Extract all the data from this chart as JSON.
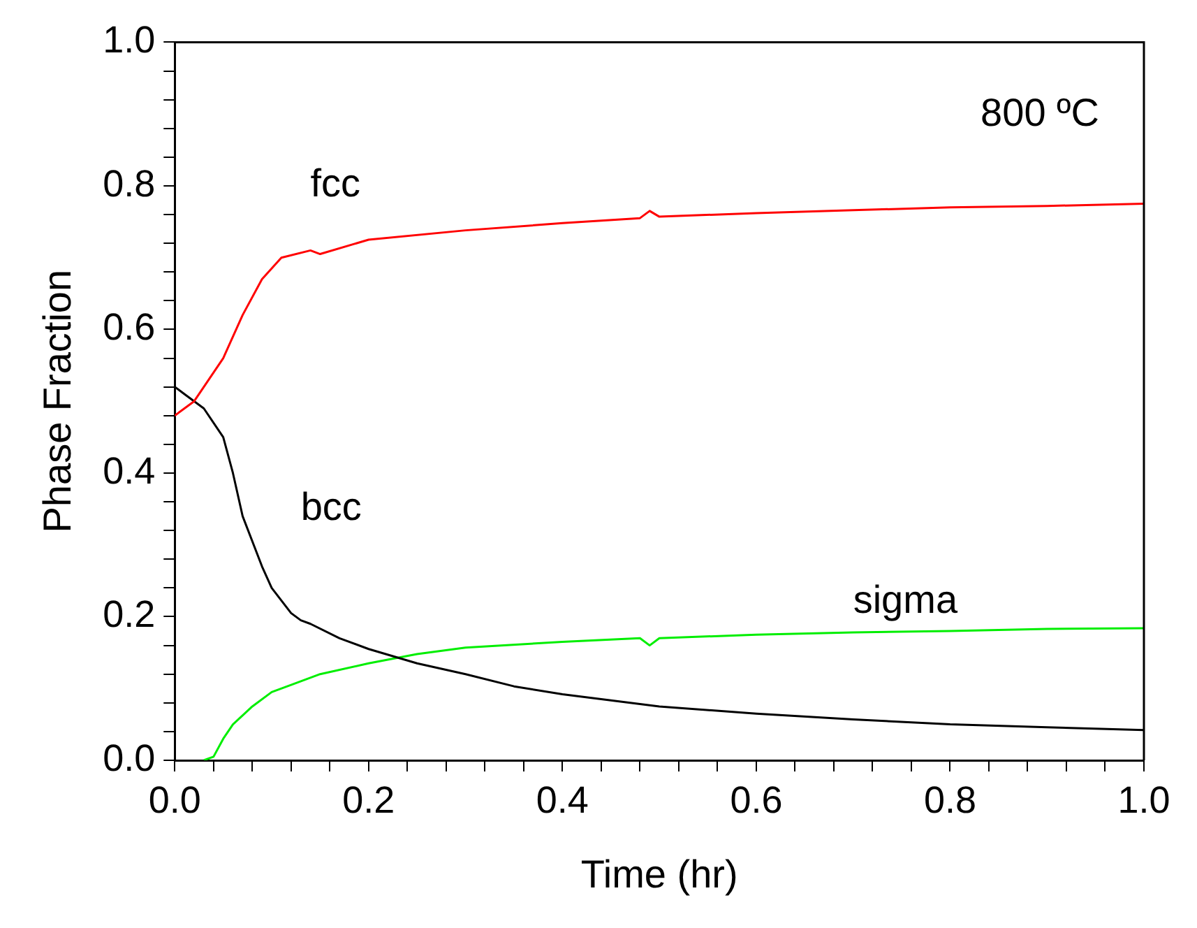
{
  "chart_data": {
    "type": "line",
    "xlabel": "Time (hr)",
    "ylabel": "Phase Fraction",
    "annotations": [
      "800 ºC"
    ],
    "xlim": [
      0,
      1
    ],
    "ylim": [
      0,
      1
    ],
    "xticks": [
      {
        "value": 0,
        "label": "0.0"
      },
      {
        "value": 0.04,
        "label": null
      },
      {
        "value": 0.08,
        "label": null
      },
      {
        "value": 0.12,
        "label": null
      },
      {
        "value": 0.16,
        "label": null
      },
      {
        "value": 0.2,
        "label": "0.2"
      },
      {
        "value": 0.24,
        "label": null
      },
      {
        "value": 0.28,
        "label": null
      },
      {
        "value": 0.32,
        "label": null
      },
      {
        "value": 0.36,
        "label": null
      },
      {
        "value": 0.4,
        "label": "0.4"
      },
      {
        "value": 0.44,
        "label": null
      },
      {
        "value": 0.48,
        "label": null
      },
      {
        "value": 0.52,
        "label": null
      },
      {
        "value": 0.56,
        "label": null
      },
      {
        "value": 0.6,
        "label": "0.6"
      },
      {
        "value": 0.64,
        "label": null
      },
      {
        "value": 0.68,
        "label": null
      },
      {
        "value": 0.72,
        "label": null
      },
      {
        "value": 0.76,
        "label": null
      },
      {
        "value": 0.8,
        "label": "0.8"
      },
      {
        "value": 0.84,
        "label": null
      },
      {
        "value": 0.88,
        "label": null
      },
      {
        "value": 0.92,
        "label": null
      },
      {
        "value": 0.96,
        "label": null
      },
      {
        "value": 1,
        "label": "1.0"
      }
    ],
    "yticks": [
      {
        "value": 0,
        "label": "0.0"
      },
      {
        "value": 0.04,
        "label": null
      },
      {
        "value": 0.08,
        "label": null
      },
      {
        "value": 0.12,
        "label": null
      },
      {
        "value": 0.16,
        "label": null
      },
      {
        "value": 0.2,
        "label": "0.2"
      },
      {
        "value": 0.24,
        "label": null
      },
      {
        "value": 0.28,
        "label": null
      },
      {
        "value": 0.32,
        "label": null
      },
      {
        "value": 0.36,
        "label": null
      },
      {
        "value": 0.4,
        "label": "0.4"
      },
      {
        "value": 0.44,
        "label": null
      },
      {
        "value": 0.48,
        "label": null
      },
      {
        "value": 0.52,
        "label": null
      },
      {
        "value": 0.56,
        "label": null
      },
      {
        "value": 0.6,
        "label": "0.6"
      },
      {
        "value": 0.64,
        "label": null
      },
      {
        "value": 0.68,
        "label": null
      },
      {
        "value": 0.72,
        "label": null
      },
      {
        "value": 0.76,
        "label": null
      },
      {
        "value": 0.8,
        "label": "0.8"
      },
      {
        "value": 0.84,
        "label": null
      },
      {
        "value": 0.88,
        "label": null
      },
      {
        "value": 0.92,
        "label": null
      },
      {
        "value": 0.96,
        "label": null
      },
      {
        "value": 1,
        "label": "1.0"
      }
    ],
    "grid": false,
    "legend": false,
    "marker": "none",
    "line_style": "solid",
    "series": [
      {
        "name": "fcc",
        "color": "#ff0000",
        "x": [
          0,
          0.02,
          0.05,
          0.07,
          0.09,
          0.11,
          0.14,
          0.15,
          0.2,
          0.3,
          0.4,
          0.48,
          0.49,
          0.5,
          0.6,
          0.7,
          0.8,
          0.9,
          1
        ],
        "values": [
          0.48,
          0.5,
          0.56,
          0.62,
          0.67,
          0.7,
          0.71,
          0.705,
          0.725,
          0.738,
          0.748,
          0.755,
          0.765,
          0.757,
          0.762,
          0.766,
          0.77,
          0.772,
          0.775
        ]
      },
      {
        "name": "bcc",
        "color": "#000000",
        "x": [
          0,
          0.01,
          0.02,
          0.03,
          0.05,
          0.06,
          0.07,
          0.09,
          0.1,
          0.12,
          0.13,
          0.14,
          0.17,
          0.2,
          0.25,
          0.3,
          0.35,
          0.4,
          0.5,
          0.6,
          0.7,
          0.8,
          0.9,
          1
        ],
        "values": [
          0.52,
          0.51,
          0.5,
          0.49,
          0.45,
          0.4,
          0.34,
          0.27,
          0.24,
          0.205,
          0.195,
          0.19,
          0.17,
          0.155,
          0.135,
          0.12,
          0.103,
          0.092,
          0.075,
          0.065,
          0.057,
          0.05,
          0.046,
          0.042
        ]
      },
      {
        "name": "sigma",
        "color": "#00ee00",
        "x": [
          0.03,
          0.04,
          0.05,
          0.06,
          0.08,
          0.1,
          0.12,
          0.15,
          0.2,
          0.25,
          0.3,
          0.4,
          0.48,
          0.49,
          0.5,
          0.6,
          0.7,
          0.8,
          0.9,
          1
        ],
        "values": [
          0,
          0.005,
          0.03,
          0.05,
          0.075,
          0.095,
          0.105,
          0.12,
          0.135,
          0.148,
          0.157,
          0.165,
          0.17,
          0.16,
          0.17,
          0.175,
          0.178,
          0.18,
          0.183,
          0.184
        ]
      }
    ]
  }
}
